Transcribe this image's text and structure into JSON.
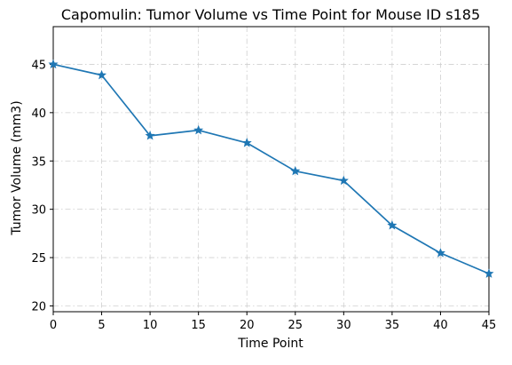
{
  "chart_data": {
    "type": "line",
    "title": "Capomulin: Tumor Volume vs Time Point for Mouse ID s185",
    "xlabel": "Time Point",
    "ylabel": "Tumor Volume (mm3)",
    "xlim": [
      0,
      45
    ],
    "ylim": [
      19.4,
      48.9
    ],
    "xticks": [
      0,
      5,
      10,
      15,
      20,
      25,
      30,
      35,
      40,
      45
    ],
    "yticks": [
      20,
      25,
      30,
      35,
      40,
      45
    ],
    "grid": true,
    "legend": "none",
    "marker": "star",
    "color": "#1f77b4",
    "series": [
      {
        "x": [
          0,
          5,
          10,
          15,
          20,
          25,
          30,
          35,
          40,
          45
        ],
        "values": [
          45.0,
          43.88,
          37.61,
          38.18,
          36.87,
          33.95,
          32.96,
          28.33,
          25.47,
          23.34
        ]
      }
    ]
  }
}
